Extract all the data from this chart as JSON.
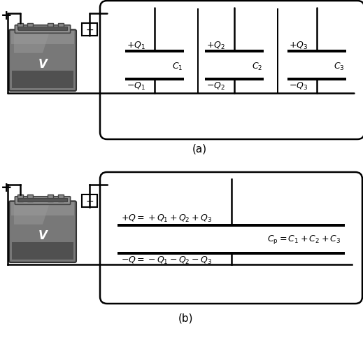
{
  "fig_width": 5.19,
  "fig_height": 4.86,
  "dpi": 100,
  "bg_color": "#ffffff",
  "line_color": "#000000",
  "label_a": "(a)",
  "label_b": "(b)",
  "V_label": "V",
  "batt_body_color": "#787878",
  "batt_top_color": "#909090",
  "batt_dark": "#505050",
  "batt_darker": "#404040",
  "batt_highlight": "#aaaaaa",
  "batt_shadow": "#606060",
  "terminal_color": "#888888",
  "minus_box_color": "#ffffff",
  "cap_labels_a": [
    "$C_1$",
    "$C_2$",
    "$C_3$"
  ],
  "q_pos_a": [
    "$+Q_1$",
    "$+Q_2$",
    "$+Q_3$"
  ],
  "q_neg_a": [
    "$-Q_1$",
    "$-Q_2$",
    "$-Q_3$"
  ],
  "q_pos_b": "$+Q = +Q_1 + Q_2 + Q_3$",
  "q_neg_b": "$-Q = -Q_1 - Q_2 - Q_3$",
  "cp_label": "$C_{\\mathrm{p}} = C_1 + C_2 + C_3$"
}
